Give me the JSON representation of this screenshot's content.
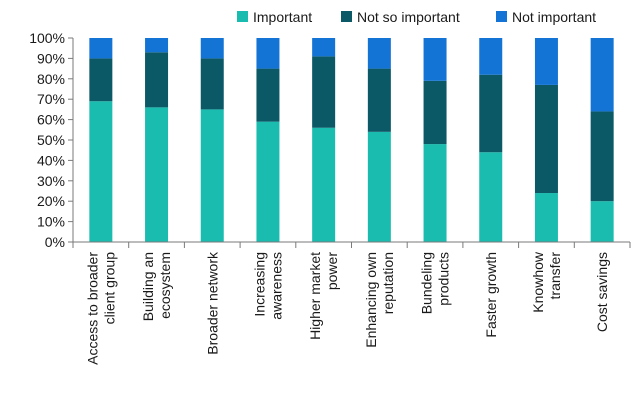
{
  "chart_data": {
    "type": "bar",
    "stacked": true,
    "categories": [
      [
        "Access to broader",
        "client group"
      ],
      [
        "Building an",
        "ecosystem"
      ],
      [
        "Broader network"
      ],
      [
        "Increasing",
        "awareness"
      ],
      [
        "Higher market",
        "power"
      ],
      [
        "Enhancing own",
        "reputation"
      ],
      [
        "Bundeling",
        "products"
      ],
      [
        "Faster growth"
      ],
      [
        "Knowhow",
        "transfer"
      ],
      [
        "Cost savings"
      ]
    ],
    "series": [
      {
        "name": "Important",
        "color": "#1bbcb0",
        "values": [
          69,
          66,
          65,
          59,
          56,
          54,
          48,
          44,
          24,
          20
        ]
      },
      {
        "name": "Not so important",
        "color": "#0b5867",
        "values": [
          21,
          27,
          25,
          26,
          35,
          31,
          31,
          38,
          53,
          44
        ]
      },
      {
        "name": "Not important",
        "color": "#1474d6",
        "values": [
          10,
          7,
          10,
          15,
          9,
          15,
          21,
          18,
          23,
          36
        ]
      }
    ],
    "y_ticks": [
      "0%",
      "10%",
      "20%",
      "30%",
      "40%",
      "50%",
      "60%",
      "70%",
      "80%",
      "90%",
      "100%"
    ],
    "ylim": [
      0,
      100
    ],
    "legend_position": "top-right",
    "grid": false
  }
}
